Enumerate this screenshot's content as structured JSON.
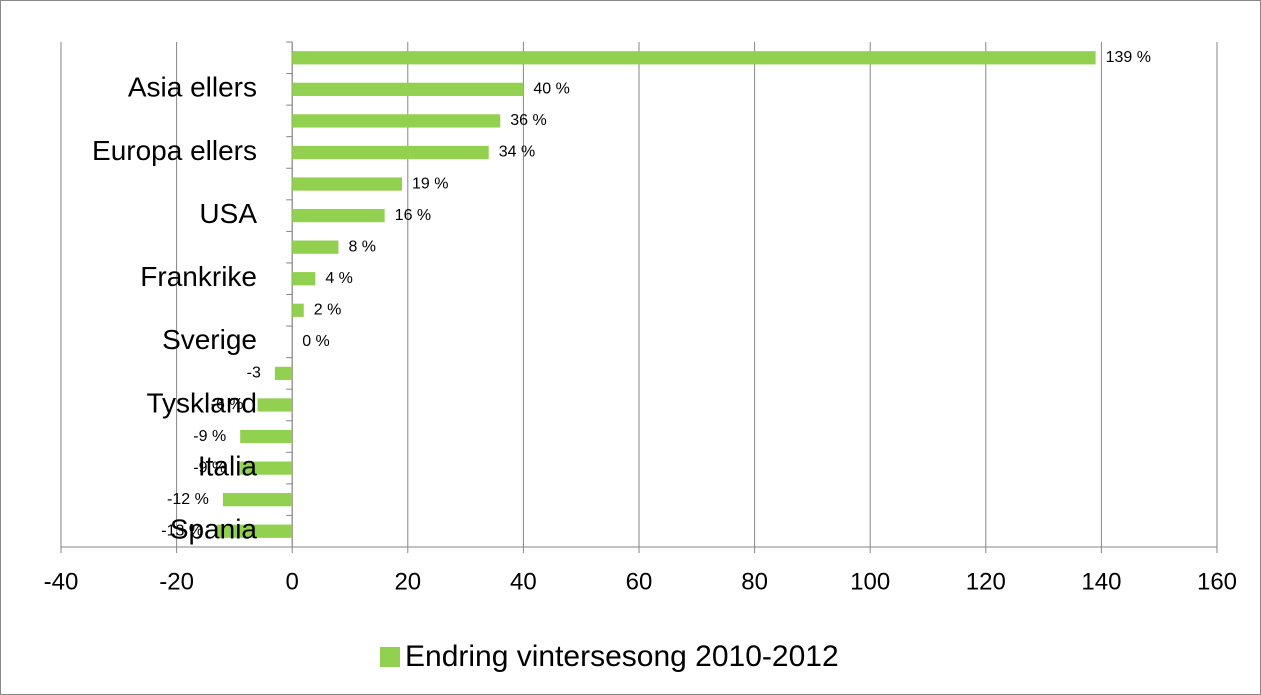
{
  "chart_data": {
    "type": "barh",
    "categories": [
      null,
      "Asia ellers",
      null,
      "Europa ellers",
      null,
      "USA",
      null,
      "Frankrike",
      null,
      "Sverige",
      null,
      "Tyskland",
      null,
      "Italia",
      null,
      "Spania"
    ],
    "series": [
      {
        "name": "Endring vintersesong 2010-2012",
        "color": "#92d050",
        "values": [
          139,
          40,
          36,
          34,
          19,
          16,
          8,
          4,
          2,
          0,
          -3,
          -6,
          -9,
          -9,
          -12,
          -13
        ],
        "value_labels": [
          "139 %",
          "40 %",
          "36 %",
          "34 %",
          "19 %",
          "16 %",
          "8 %",
          "4 %",
          "2 %",
          "0 %",
          "-3",
          "-6 %",
          "-9 %",
          "-9 %",
          "-12 %",
          "-13 %"
        ]
      }
    ],
    "xlim": [
      -40,
      160
    ],
    "xticks": [
      -40,
      -20,
      0,
      20,
      40,
      60,
      80,
      100,
      120,
      140,
      160
    ],
    "grid": true,
    "legend": "bottom"
  }
}
